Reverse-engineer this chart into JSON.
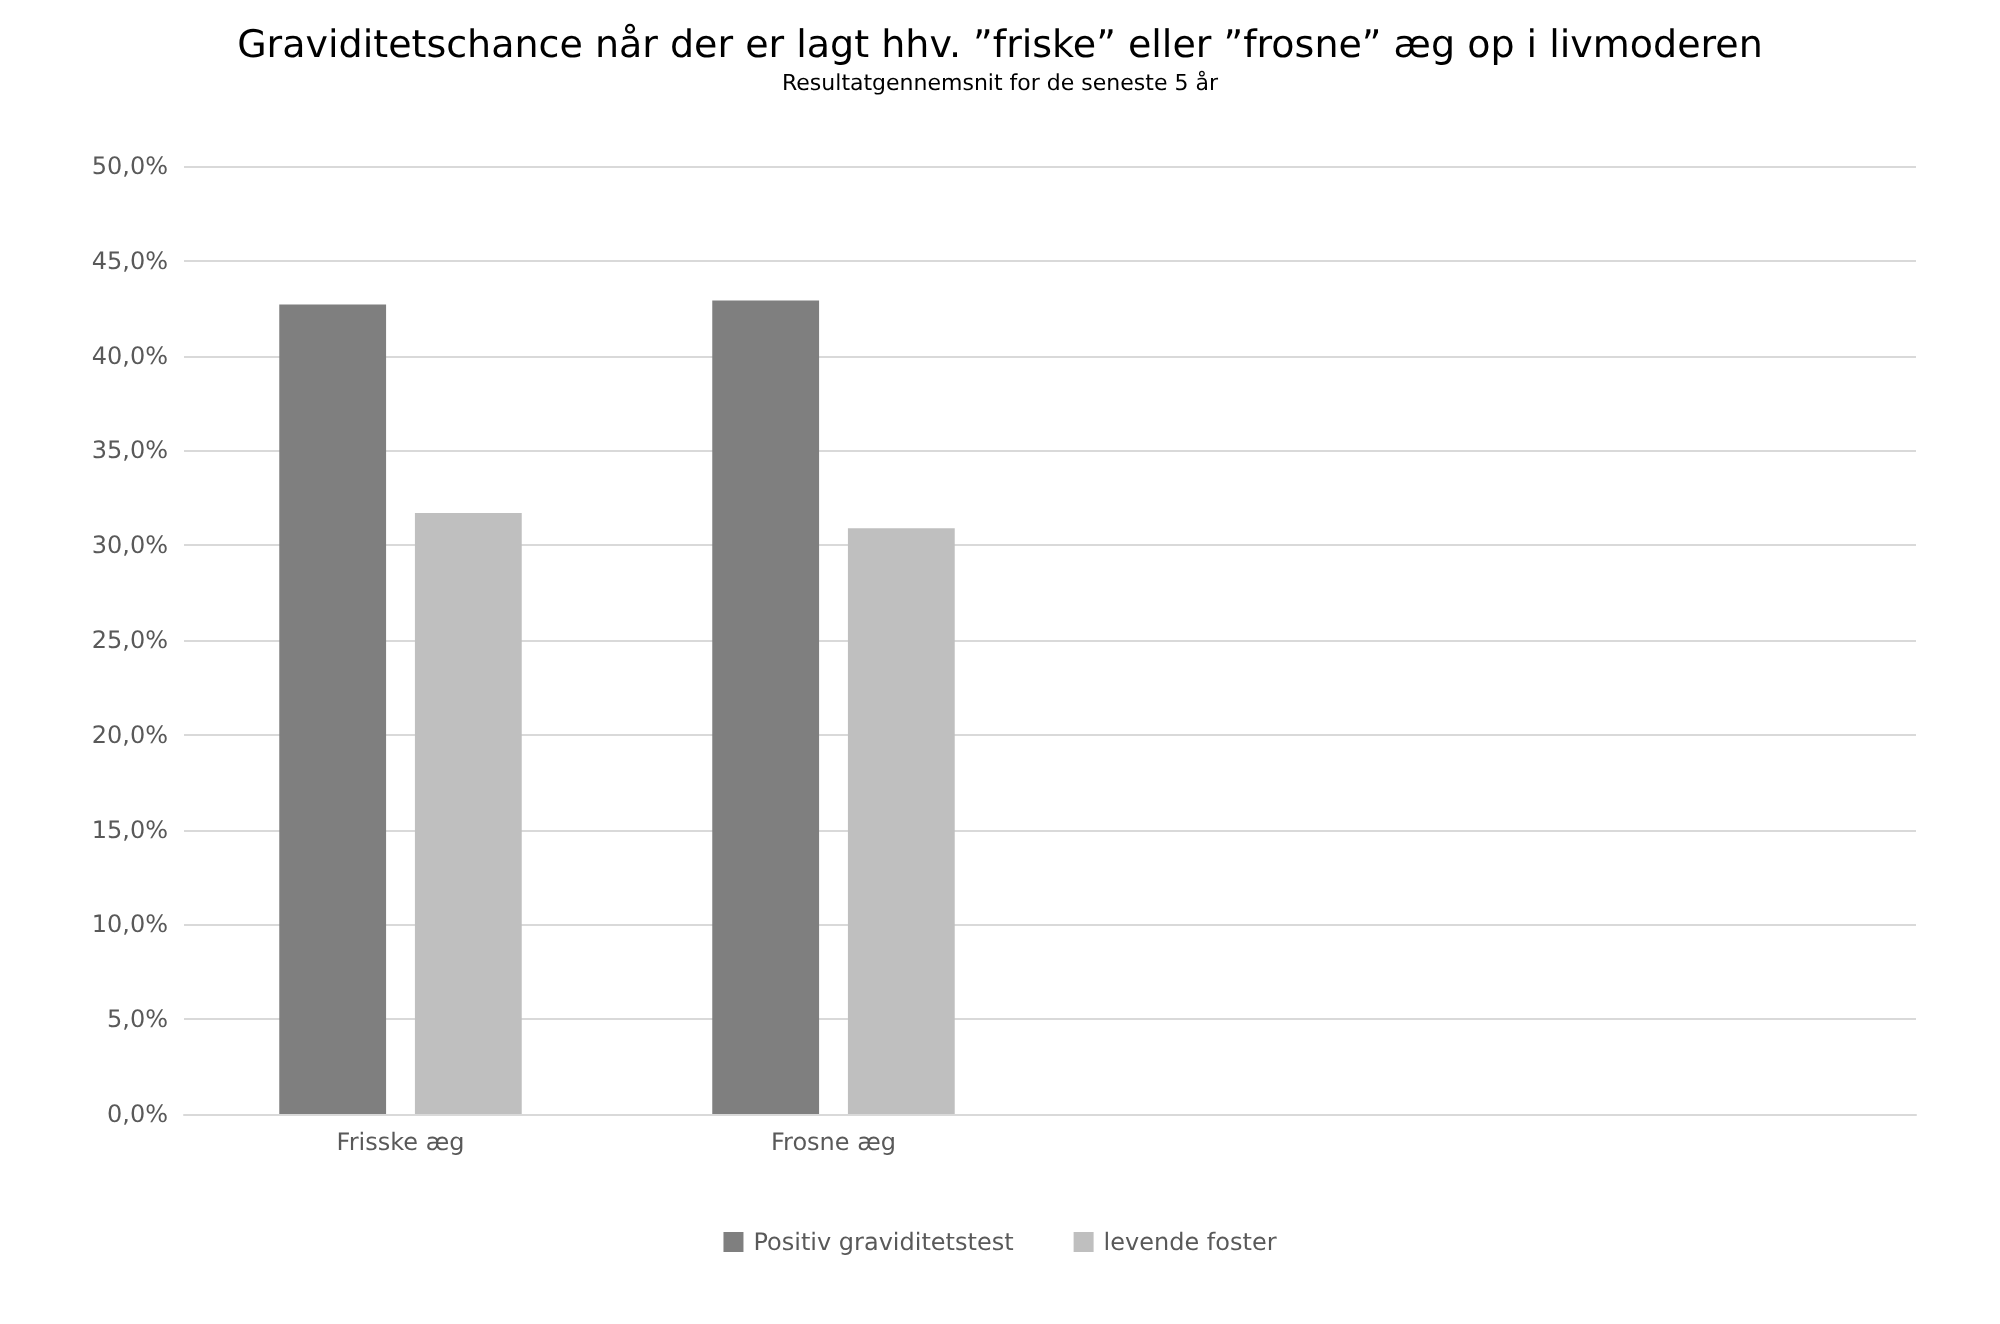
{
  "chart_data": {
    "type": "bar",
    "title": "Graviditetschance når der er lagt hhv. ”friske” eller ”frosne” æg op i livmoderen",
    "subtitle": "Resultatgennemsnit for de seneste 5 år",
    "categories": [
      "Frisske æg",
      "Frosne æg",
      null,
      null
    ],
    "series": [
      {
        "name": "Positiv graviditetstest",
        "color": "#7f7f7f",
        "values": [
          42.7,
          42.9,
          null,
          null
        ]
      },
      {
        "name": "levende foster",
        "color": "#bfbfbf",
        "values": [
          31.7,
          30.9,
          null,
          null
        ]
      }
    ],
    "ylim": [
      0,
      50
    ],
    "yticks": [
      {
        "value": 0,
        "label": "0,0%"
      },
      {
        "value": 5,
        "label": "5,0%"
      },
      {
        "value": 10,
        "label": "10,0%"
      },
      {
        "value": 15,
        "label": "15,0%"
      },
      {
        "value": 20,
        "label": "20,0%"
      },
      {
        "value": 25,
        "label": "25,0%"
      },
      {
        "value": 30,
        "label": "30,0%"
      },
      {
        "value": 35,
        "label": "35,0%"
      },
      {
        "value": 40,
        "label": "40,0%"
      },
      {
        "value": 45,
        "label": "45,0%"
      },
      {
        "value": 50,
        "label": "50,0%"
      }
    ],
    "grid": "y",
    "legend": "bottom"
  }
}
